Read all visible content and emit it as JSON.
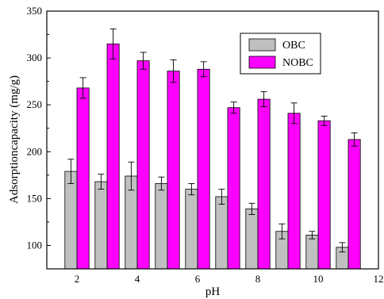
{
  "chart_data": {
    "type": "bar",
    "xlabel": "pH",
    "ylabel": "Adsorptioncapacity (mg/g)",
    "xlim": [
      1,
      12
    ],
    "ylim": [
      75,
      350
    ],
    "x_ticks": [
      2,
      4,
      6,
      8,
      10,
      12
    ],
    "y_ticks": [
      100,
      150,
      200,
      250,
      300,
      350
    ],
    "x": [
      2,
      3,
      4,
      5,
      6,
      7,
      8,
      9,
      10,
      11
    ],
    "series": [
      {
        "name": "OBC",
        "color": "#c0c0c0",
        "values": [
          179,
          168,
          174,
          166,
          160,
          152,
          139,
          115,
          111,
          98
        ],
        "errors": [
          13,
          8,
          15,
          7,
          6,
          8,
          6,
          8,
          4,
          5
        ]
      },
      {
        "name": "NOBC",
        "color": "#ff00ff",
        "values": [
          268,
          315,
          297,
          286,
          288,
          247,
          256,
          241,
          233,
          213
        ],
        "errors": [
          11,
          16,
          9,
          12,
          8,
          6,
          8,
          11,
          5,
          7
        ]
      }
    ],
    "legend_position": "top-right",
    "grid": false
  }
}
